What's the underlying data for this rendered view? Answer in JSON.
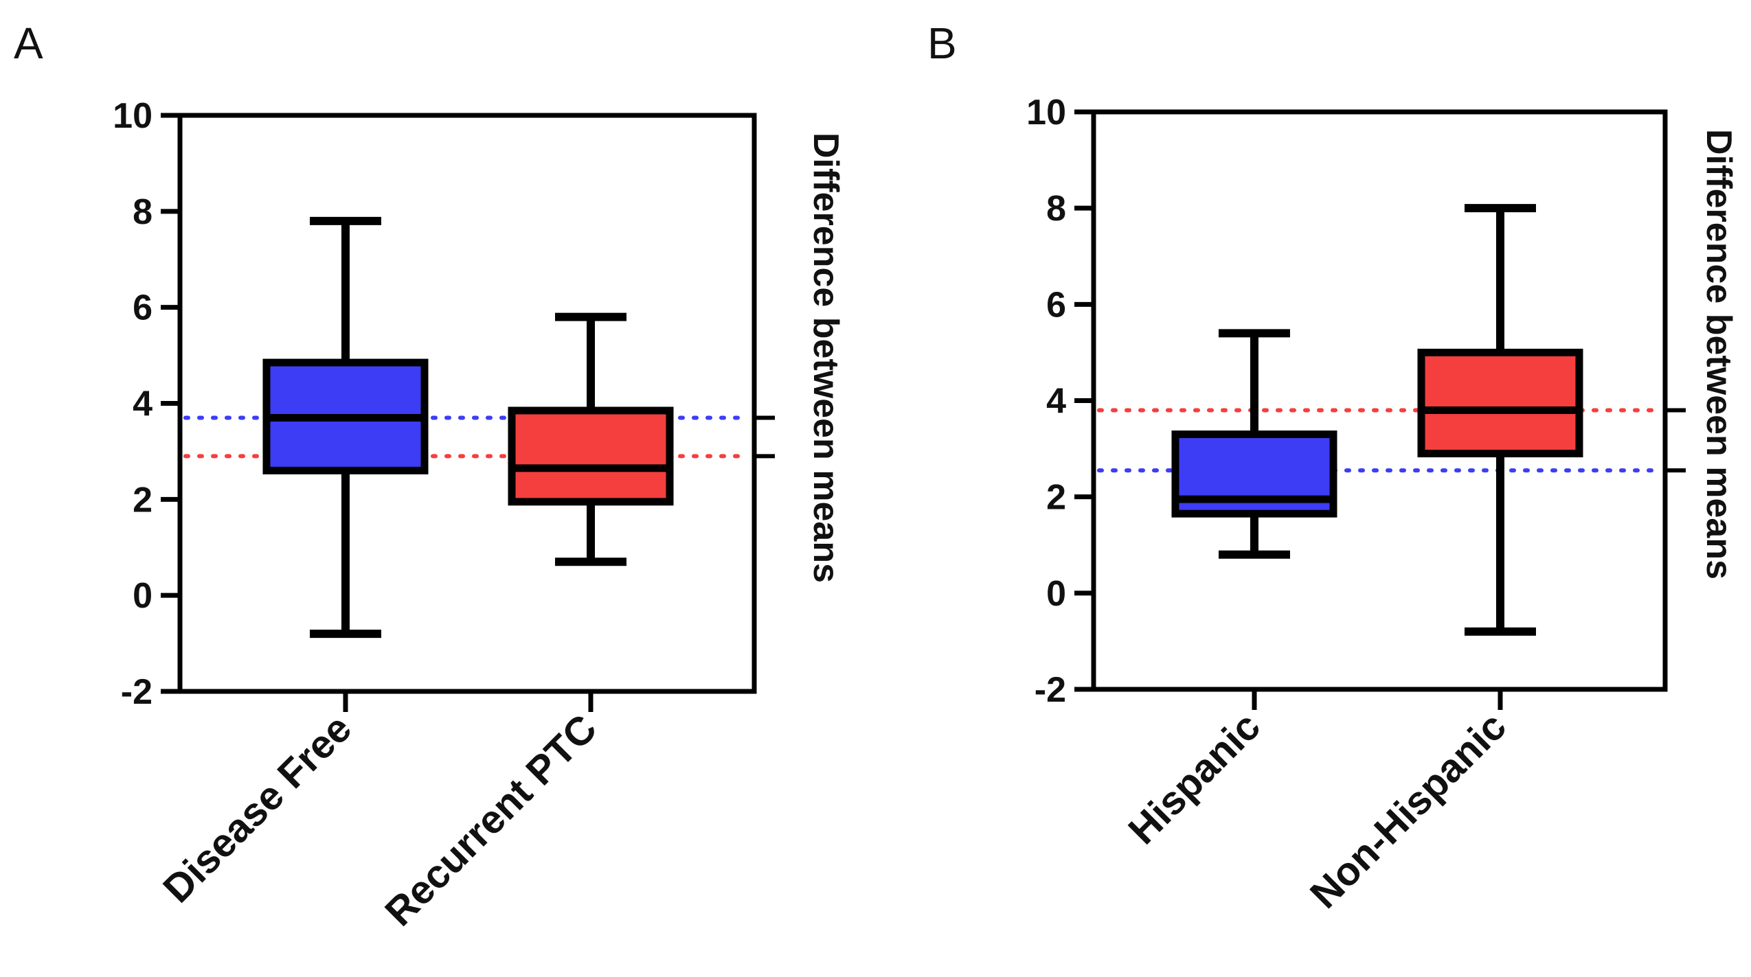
{
  "colors": {
    "blue": "#3d3df5",
    "red": "#f53e3e",
    "line": "#000000"
  },
  "chart_data": [
    {
      "type": "box",
      "panel": "A",
      "ylim": [
        -2,
        10
      ],
      "yticks": [
        -2,
        0,
        2,
        4,
        6,
        8,
        10
      ],
      "ytick_labels": [
        "-2",
        "0",
        "2",
        "4",
        "6",
        "8",
        "10"
      ],
      "right_axis_label": "Difference between means",
      "categories": [
        "Disease Free",
        "Recurrent PTC"
      ],
      "boxes": [
        {
          "name": "Disease Free",
          "color": "#3d3df5",
          "min": -0.8,
          "q1": 2.6,
          "median": 3.7,
          "q3": 4.85,
          "max": 7.8,
          "mean": 3.7
        },
        {
          "name": "Recurrent PTC",
          "color": "#f53e3e",
          "min": 0.7,
          "q1": 1.95,
          "median": 2.65,
          "q3": 3.85,
          "max": 5.8,
          "mean": 2.9
        }
      ]
    },
    {
      "type": "box",
      "panel": "B",
      "ylim": [
        -2,
        10
      ],
      "yticks": [
        -2,
        0,
        2,
        4,
        6,
        8,
        10
      ],
      "ytick_labels": [
        "-2",
        "0",
        "2",
        "4",
        "6",
        "8",
        "10"
      ],
      "right_axis_label": "Difference between means",
      "categories": [
        "Hispanic",
        "Non-Hispanic"
      ],
      "boxes": [
        {
          "name": "Hispanic",
          "color": "#3d3df5",
          "min": 0.8,
          "q1": 1.65,
          "median": 1.95,
          "q3": 3.3,
          "max": 5.4,
          "mean": 2.55
        },
        {
          "name": "Non-Hispanic",
          "color": "#f53e3e",
          "min": -0.8,
          "q1": 2.9,
          "median": 3.8,
          "q3": 5.0,
          "max": 8.0,
          "mean": 3.8
        }
      ]
    }
  ]
}
